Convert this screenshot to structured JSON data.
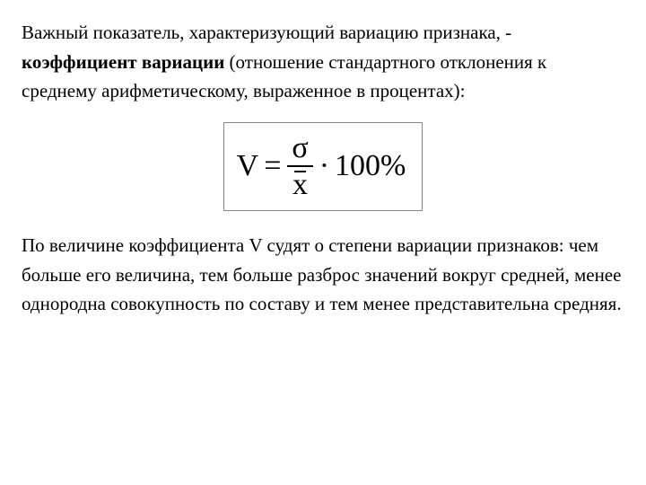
{
  "para1": {
    "t1": "Важный показатель, характеризующий вариацию признака, - ",
    "bold": "коэффициент вариации",
    "t2": " (отношение стандартного отклонения к среднему арифметическому, выраженное в процентах):"
  },
  "formula": {
    "lhs": "V",
    "eq": "=",
    "numerator": "σ",
    "denominator": "x",
    "dot": "·",
    "rhs": "100%"
  },
  "para2": "По величине коэффициента V судят о степени вариации признаков: чем больше его величина, тем больше разброс значений вокруг средней, менее однородна совокупность по составу и тем менее представительна средняя."
}
